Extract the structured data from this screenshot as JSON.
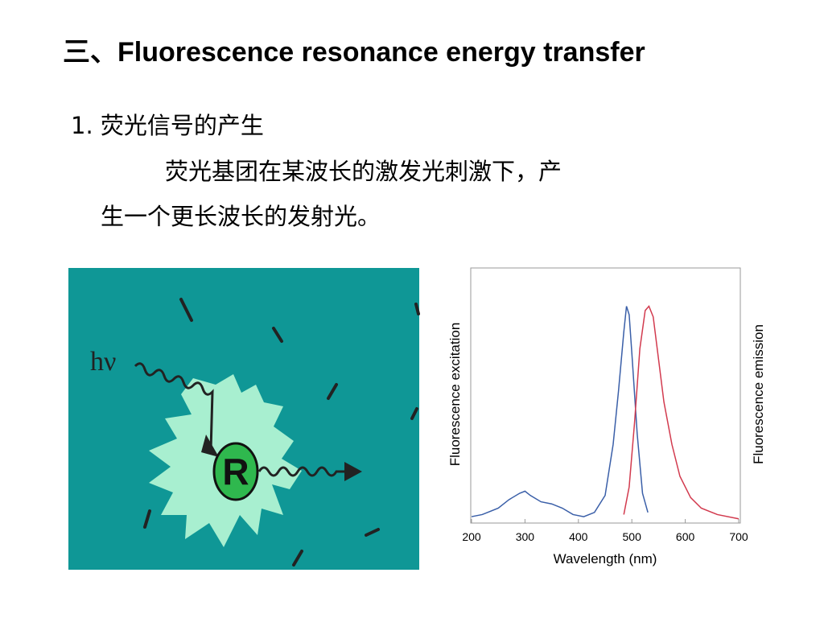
{
  "title": "三、Fluorescence resonance energy transfer",
  "heading": "1. 荧光信号的产生",
  "paragraph": [
    "荧光基团在某波长的激发光刺激下，产",
    "生一个更长波长的发射光。"
  ],
  "illustration": {
    "photon_label": "hν",
    "fluorophore_label": "R"
  },
  "chart_data": {
    "type": "line",
    "xlabel": "Wavelength (nm)",
    "ylabel": "Fluorescence excitation",
    "y2label": "Fluorescence emission",
    "xlim": [
      200,
      700
    ],
    "xticks": [
      200,
      300,
      400,
      500,
      600,
      700
    ],
    "ylim": [
      -2,
      118
    ],
    "series": [
      {
        "name": "Fluorescence excitation",
        "color": "#3a5fa8",
        "x": [
          200,
          220,
          250,
          270,
          290,
          300,
          310,
          330,
          350,
          370,
          390,
          410,
          430,
          450,
          465,
          475,
          485,
          490,
          495,
          500,
          510,
          520,
          530
        ],
        "values": [
          1,
          2,
          5,
          9,
          12,
          13,
          11,
          8,
          7,
          5,
          2,
          1,
          3,
          11,
          35,
          60,
          88,
          100,
          96,
          78,
          40,
          12,
          3
        ]
      },
      {
        "name": "Fluorescence emission",
        "color": "#d23a4e",
        "axis": "y2",
        "x": [
          485,
          495,
          505,
          515,
          525,
          532,
          540,
          550,
          560,
          575,
          590,
          610,
          630,
          660,
          700
        ],
        "values": [
          2,
          15,
          45,
          80,
          98,
          100,
          95,
          75,
          55,
          35,
          20,
          10,
          5,
          2,
          0
        ]
      }
    ]
  }
}
